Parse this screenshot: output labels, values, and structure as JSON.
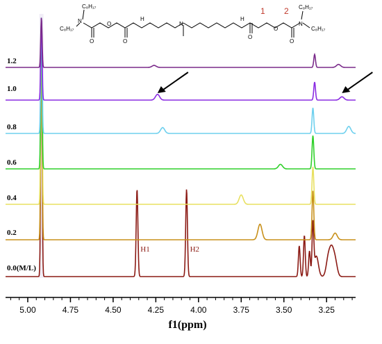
{
  "chart_data": {
    "type": "line",
    "xlabel": "f1(ppm)",
    "xlim": [
      5.13,
      3.08
    ],
    "x_reversed": true,
    "x_ticks": [
      {
        "v": 5.0,
        "label": "5.00"
      },
      {
        "v": 4.75,
        "label": "4.75"
      },
      {
        "v": 4.5,
        "label": "4.50"
      },
      {
        "v": 4.25,
        "label": "4.25"
      },
      {
        "v": 4.0,
        "label": "4.00"
      },
      {
        "v": 3.75,
        "label": "3.75"
      },
      {
        "v": 3.5,
        "label": "3.50"
      },
      {
        "v": 3.25,
        "label": "3.25"
      }
    ],
    "series": [
      {
        "name": "0.0(M/L)",
        "color": "#8b1a14",
        "points": [
          [
            4.92,
            1.0
          ],
          [
            4.36,
            0.34
          ],
          [
            4.07,
            0.34
          ],
          [
            3.41,
            0.12
          ],
          [
            3.38,
            0.16
          ],
          [
            3.35,
            0.1
          ],
          [
            3.33,
            0.2
          ],
          [
            3.31,
            0.08
          ],
          [
            3.24,
            0.07
          ],
          [
            3.22,
            0.09
          ],
          [
            3.2,
            0.06
          ]
        ]
      },
      {
        "name": "0.2",
        "color": "#c8901a",
        "points": [
          [
            4.92,
            1.0
          ],
          [
            3.64,
            0.07
          ],
          [
            3.33,
            0.22
          ],
          [
            3.2,
            0.03
          ]
        ]
      },
      {
        "name": "0.4",
        "color": "#e8e060",
        "points": [
          [
            4.92,
            1.0
          ],
          [
            3.75,
            0.05
          ],
          [
            3.33,
            0.2
          ]
        ]
      },
      {
        "name": "0.6",
        "color": "#2fd02a",
        "points": [
          [
            4.92,
            1.0
          ],
          [
            3.52,
            0.03
          ],
          [
            3.33,
            0.22
          ]
        ]
      },
      {
        "name": "0.8",
        "color": "#6ed0ee",
        "points": [
          [
            4.92,
            1.0
          ],
          [
            4.21,
            0.05
          ],
          [
            3.33,
            0.22
          ],
          [
            3.12,
            0.06
          ]
        ]
      },
      {
        "name": "1.0",
        "color": "#8a2be2",
        "points": [
          [
            4.92,
            1.0
          ],
          [
            4.24,
            0.07
          ],
          [
            3.32,
            0.22
          ],
          [
            3.16,
            0.04
          ]
        ]
      },
      {
        "name": "1.2",
        "color": "#7a2a8a",
        "points": [
          [
            4.92,
            1.0
          ],
          [
            4.26,
            0.04
          ],
          [
            3.32,
            0.26
          ],
          [
            3.18,
            0.06
          ]
        ]
      }
    ],
    "annotations": [
      {
        "text": "H1",
        "x": 4.36
      },
      {
        "text": "H2",
        "x": 4.07
      }
    ],
    "arrows": [
      {
        "series": "1.0",
        "x": 4.24
      },
      {
        "series": "1.0",
        "x": 3.16
      }
    ]
  },
  "structure": {
    "alkyl_top_left": "C₈H₁₇",
    "alkyl_bottom_left": "C₈H₁₇",
    "alkyl_top_right": "C₈H₁₇",
    "alkyl_bottom_right": "C₈H₁₇",
    "atom_n": "N",
    "atom_o": "O",
    "atom_nh": "H",
    "position_1": "1",
    "position_2": "2"
  }
}
